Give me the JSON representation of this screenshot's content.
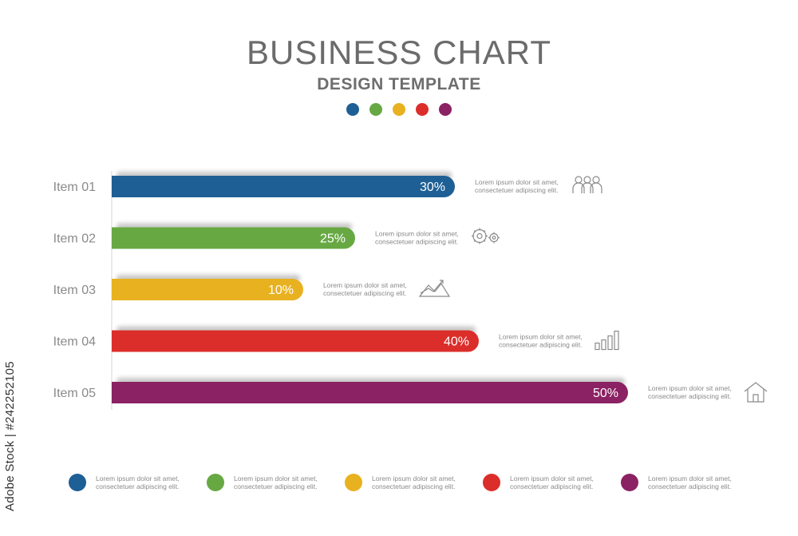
{
  "header": {
    "title": "BUSINESS CHART",
    "subtitle": "DESIGN TEMPLATE"
  },
  "palette": [
    "#1e5f95",
    "#67a843",
    "#e8b120",
    "#db2e2a",
    "#8b2263"
  ],
  "chart_data": {
    "type": "bar",
    "orientation": "horizontal",
    "categories": [
      "Item 01",
      "Item 02",
      "Item 03",
      "Item 04",
      "Item 05"
    ],
    "values": [
      30,
      25,
      10,
      40,
      50
    ],
    "value_labels": [
      "30%",
      "25%",
      "10%",
      "40%",
      "50%"
    ],
    "colors": [
      "#1e5f95",
      "#67a843",
      "#e8b120",
      "#db2e2a",
      "#8b2263"
    ],
    "annotation_lines": [
      "Lorem ipsum dolor sit amet,",
      "consectetuer adipiscing elit."
    ],
    "icons": [
      "people-icon",
      "gears-icon",
      "trend-chart-icon",
      "bar-chart-icon",
      "house-icon"
    ],
    "xlim": [
      0,
      50
    ],
    "grid": false
  },
  "legend": {
    "items": [
      {
        "color": "#1e5f95",
        "line1": "Lorem ipsum dolor sit amet,",
        "line2": "consectetuer adipiscing elit."
      },
      {
        "color": "#67a843",
        "line1": "Lorem ipsum dolor sit amet,",
        "line2": "consectetuer adipiscing elit."
      },
      {
        "color": "#e8b120",
        "line1": "Lorem ipsum dolor sit amet,",
        "line2": "consectetuer adipiscing elit."
      },
      {
        "color": "#db2e2a",
        "line1": "Lorem ipsum dolor sit amet,",
        "line2": "consectetuer adipiscing elit."
      },
      {
        "color": "#8b2263",
        "line1": "Lorem ipsum dolor sit amet,",
        "line2": "consectetuer adipiscing elit."
      }
    ]
  },
  "watermark": "Adobe Stock | #242252105"
}
